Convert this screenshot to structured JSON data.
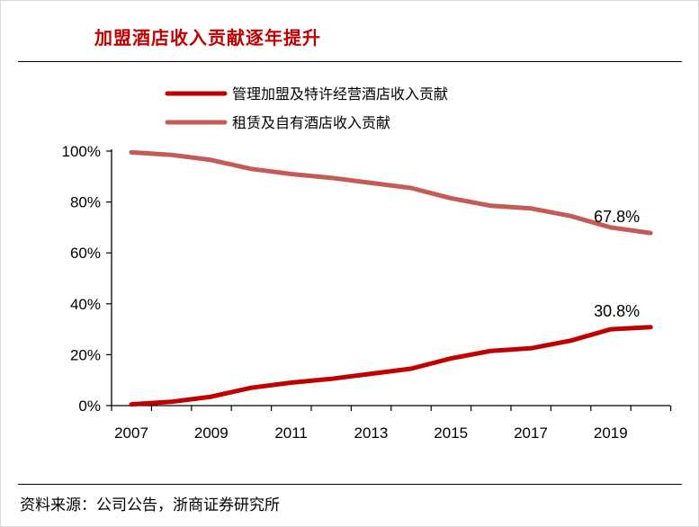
{
  "title": "加盟酒店收入贡献逐年提升",
  "source": "资料来源：公司公告，浙商证券研究所",
  "chart_data": {
    "type": "line",
    "x": [
      2007,
      2008,
      2009,
      2010,
      2011,
      2012,
      2013,
      2014,
      2015,
      2016,
      2017,
      2018,
      2019,
      2020
    ],
    "xticks": [
      "2007",
      "2009",
      "2011",
      "2013",
      "2015",
      "2017",
      "2019"
    ],
    "ylim": [
      0,
      100
    ],
    "yticks": [
      "0%",
      "20%",
      "40%",
      "60%",
      "80%",
      "100%"
    ],
    "grid": false,
    "legend_position": "top-left",
    "series": [
      {
        "name": "管理加盟及特许经营酒店收入贡献",
        "color": "#c00000",
        "values": [
          0.5,
          1.5,
          3.5,
          7,
          9,
          10.5,
          12.5,
          14.5,
          18.5,
          21.5,
          22.5,
          25.5,
          30,
          30.8
        ],
        "end_label": "30.8%"
      },
      {
        "name": "租赁及自有酒店收入贡献",
        "color": "#c55a5a",
        "values": [
          99.5,
          98.5,
          96.5,
          93,
          91,
          89.5,
          87.5,
          85.5,
          81.5,
          78.5,
          77.5,
          74.5,
          70,
          67.8
        ],
        "end_label": "67.8%"
      }
    ]
  }
}
